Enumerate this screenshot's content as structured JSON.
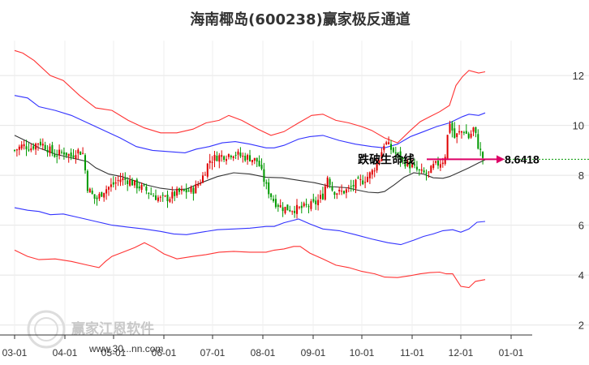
{
  "chart_data": {
    "type": "line",
    "title": "海南椰岛(600238)赢家极反通道",
    "y_ticks": [
      2,
      4,
      6,
      8,
      10,
      12
    ],
    "ylim": [
      1.6,
      13.4
    ],
    "x_ticks": [
      "03-01",
      "04-01",
      "05-01",
      "06-01",
      "07-01",
      "08-01",
      "09-01",
      "10-01",
      "11-01",
      "12-01",
      "01-01"
    ],
    "grid": true,
    "annotation": "跌破生命线",
    "current_value_label": "8.6418",
    "current_value": 8.6418,
    "watermark": "赢家江恩软件",
    "watermark_url": "www.30...nn.com",
    "colors": {
      "up": "#e00000",
      "down": "#009900",
      "outer_band": "#ff3333",
      "inner_band": "#3333ff",
      "midline": "#333333",
      "arrow": "#dd0066",
      "level_line": "#009900"
    },
    "series": [
      {
        "role": "outer-upper",
        "values": [
          [
            0,
            13.0
          ],
          [
            5,
            12.9
          ],
          [
            12,
            12.6
          ],
          [
            22,
            12.0
          ],
          [
            30,
            11.8
          ],
          [
            40,
            11.2
          ],
          [
            50,
            10.7
          ],
          [
            60,
            10.6
          ],
          [
            70,
            10.2
          ],
          [
            80,
            9.9
          ],
          [
            90,
            9.7
          ],
          [
            100,
            9.7
          ],
          [
            110,
            9.85
          ],
          [
            118,
            10.1
          ],
          [
            126,
            10.2
          ],
          [
            132,
            10.4
          ],
          [
            140,
            10.2
          ],
          [
            150,
            9.85
          ],
          [
            158,
            9.6
          ],
          [
            166,
            9.75
          ],
          [
            175,
            10.1
          ],
          [
            183,
            10.4
          ],
          [
            190,
            10.45
          ],
          [
            198,
            10.2
          ],
          [
            206,
            10.1
          ],
          [
            214,
            9.95
          ],
          [
            220,
            9.8
          ],
          [
            228,
            9.5
          ],
          [
            236,
            9.3
          ],
          [
            244,
            9.8
          ],
          [
            250,
            10.15
          ],
          [
            256,
            10.35
          ],
          [
            262,
            10.55
          ],
          [
            268,
            10.8
          ],
          [
            272,
            11.6
          ],
          [
            276,
            11.95
          ],
          [
            280,
            12.2
          ],
          [
            286,
            12.1
          ],
          [
            290,
            12.15
          ]
        ]
      },
      {
        "role": "inner-upper",
        "values": [
          [
            0,
            11.2
          ],
          [
            8,
            11.1
          ],
          [
            15,
            10.75
          ],
          [
            25,
            10.6
          ],
          [
            35,
            10.4
          ],
          [
            45,
            10.1
          ],
          [
            55,
            9.8
          ],
          [
            65,
            9.5
          ],
          [
            75,
            9.15
          ],
          [
            85,
            9.0
          ],
          [
            95,
            8.95
          ],
          [
            105,
            8.9
          ],
          [
            112,
            9.05
          ],
          [
            120,
            9.15
          ],
          [
            128,
            9.3
          ],
          [
            136,
            9.35
          ],
          [
            145,
            9.25
          ],
          [
            155,
            9.1
          ],
          [
            160,
            9.1
          ],
          [
            166,
            9.2
          ],
          [
            175,
            9.45
          ],
          [
            182,
            9.55
          ],
          [
            190,
            9.6
          ],
          [
            200,
            9.4
          ],
          [
            210,
            9.25
          ],
          [
            220,
            9.15
          ],
          [
            228,
            9.1
          ],
          [
            236,
            9.25
          ],
          [
            244,
            9.55
          ],
          [
            252,
            9.75
          ],
          [
            260,
            9.95
          ],
          [
            268,
            10.1
          ],
          [
            276,
            10.35
          ],
          [
            280,
            10.45
          ],
          [
            286,
            10.4
          ],
          [
            290,
            10.5
          ]
        ]
      },
      {
        "role": "midline",
        "values": [
          [
            0,
            9.6
          ],
          [
            8,
            9.35
          ],
          [
            15,
            9.1
          ],
          [
            25,
            8.85
          ],
          [
            35,
            8.7
          ],
          [
            45,
            8.55
          ],
          [
            50,
            8.3
          ],
          [
            58,
            8.05
          ],
          [
            66,
            7.95
          ],
          [
            74,
            7.78
          ],
          [
            82,
            7.6
          ],
          [
            90,
            7.48
          ],
          [
            98,
            7.42
          ],
          [
            106,
            7.45
          ],
          [
            115,
            7.7
          ],
          [
            125,
            7.95
          ],
          [
            135,
            8.1
          ],
          [
            145,
            8.05
          ],
          [
            155,
            7.92
          ],
          [
            165,
            7.9
          ],
          [
            175,
            7.8
          ],
          [
            185,
            7.7
          ],
          [
            195,
            7.55
          ],
          [
            205,
            7.5
          ],
          [
            212,
            7.4
          ],
          [
            218,
            7.32
          ],
          [
            224,
            7.3
          ],
          [
            228,
            7.35
          ],
          [
            234,
            7.62
          ],
          [
            240,
            7.92
          ],
          [
            246,
            8.1
          ],
          [
            252,
            8.05
          ],
          [
            258,
            7.9
          ],
          [
            264,
            7.88
          ],
          [
            268,
            7.95
          ],
          [
            274,
            8.12
          ],
          [
            280,
            8.3
          ],
          [
            286,
            8.5
          ],
          [
            290,
            8.62
          ]
        ]
      },
      {
        "role": "inner-lower",
        "values": [
          [
            0,
            6.7
          ],
          [
            8,
            6.6
          ],
          [
            15,
            6.55
          ],
          [
            22,
            6.42
          ],
          [
            30,
            6.45
          ],
          [
            40,
            6.3
          ],
          [
            50,
            6.15
          ],
          [
            60,
            6.0
          ],
          [
            70,
            5.92
          ],
          [
            80,
            5.85
          ],
          [
            90,
            5.75
          ],
          [
            98,
            5.65
          ],
          [
            106,
            5.62
          ],
          [
            115,
            5.72
          ],
          [
            125,
            5.82
          ],
          [
            135,
            5.85
          ],
          [
            145,
            5.88
          ],
          [
            155,
            5.95
          ],
          [
            160,
            5.95
          ],
          [
            166,
            6.1
          ],
          [
            175,
            6.25
          ],
          [
            182,
            6.05
          ],
          [
            190,
            5.85
          ],
          [
            200,
            5.78
          ],
          [
            210,
            5.62
          ],
          [
            220,
            5.45
          ],
          [
            230,
            5.3
          ],
          [
            238,
            5.22
          ],
          [
            246,
            5.4
          ],
          [
            252,
            5.55
          ],
          [
            258,
            5.65
          ],
          [
            264,
            5.78
          ],
          [
            270,
            5.82
          ],
          [
            275,
            5.72
          ],
          [
            280,
            5.85
          ],
          [
            285,
            6.12
          ],
          [
            290,
            6.15
          ]
        ]
      },
      {
        "role": "outer-lower",
        "values": [
          [
            0,
            5.0
          ],
          [
            8,
            4.75
          ],
          [
            15,
            4.62
          ],
          [
            25,
            4.65
          ],
          [
            35,
            4.55
          ],
          [
            45,
            4.4
          ],
          [
            52,
            4.3
          ],
          [
            56,
            4.55
          ],
          [
            60,
            4.75
          ],
          [
            66,
            4.9
          ],
          [
            74,
            5.1
          ],
          [
            80,
            5.3
          ],
          [
            86,
            5.1
          ],
          [
            92,
            4.85
          ],
          [
            100,
            4.65
          ],
          [
            110,
            4.75
          ],
          [
            118,
            4.82
          ],
          [
            126,
            4.92
          ],
          [
            135,
            4.95
          ],
          [
            145,
            4.92
          ],
          [
            155,
            4.92
          ],
          [
            160,
            5.0
          ],
          [
            166,
            5.05
          ],
          [
            172,
            5.15
          ],
          [
            176,
            5.15
          ],
          [
            182,
            4.88
          ],
          [
            190,
            4.65
          ],
          [
            198,
            4.4
          ],
          [
            206,
            4.3
          ],
          [
            214,
            4.15
          ],
          [
            222,
            4.05
          ],
          [
            228,
            3.92
          ],
          [
            236,
            3.9
          ],
          [
            244,
            3.98
          ],
          [
            250,
            4.05
          ],
          [
            256,
            4.1
          ],
          [
            262,
            4.12
          ],
          [
            266,
            4.05
          ],
          [
            270,
            4.05
          ],
          [
            275,
            3.55
          ],
          [
            280,
            3.5
          ],
          [
            284,
            3.75
          ],
          [
            290,
            3.82
          ]
        ]
      },
      {
        "role": "price",
        "values": [
          [
            0,
            9.0
          ],
          [
            5,
            9.2
          ],
          [
            10,
            9.1
          ],
          [
            15,
            9.35
          ],
          [
            20,
            9.1
          ],
          [
            25,
            8.8
          ],
          [
            30,
            8.95
          ],
          [
            35,
            8.75
          ],
          [
            38,
            9.0
          ],
          [
            42,
            8.9
          ],
          [
            45,
            7.5
          ],
          [
            50,
            7.0
          ],
          [
            55,
            7.4
          ],
          [
            60,
            7.6
          ],
          [
            65,
            7.85
          ],
          [
            70,
            7.8
          ],
          [
            75,
            7.6
          ],
          [
            80,
            7.45
          ],
          [
            85,
            7.2
          ],
          [
            90,
            7.05
          ],
          [
            95,
            7.1
          ],
          [
            100,
            7.3
          ],
          [
            105,
            7.35
          ],
          [
            110,
            7.4
          ],
          [
            115,
            7.8
          ],
          [
            120,
            8.6
          ],
          [
            125,
            8.75
          ],
          [
            130,
            8.8
          ],
          [
            135,
            8.9
          ],
          [
            140,
            8.75
          ],
          [
            145,
            8.7
          ],
          [
            150,
            8.55
          ],
          [
            155,
            7.55
          ],
          [
            160,
            6.95
          ],
          [
            165,
            6.7
          ],
          [
            170,
            6.65
          ],
          [
            175,
            6.65
          ],
          [
            180,
            6.75
          ],
          [
            185,
            6.85
          ],
          [
            190,
            7.2
          ],
          [
            193,
            8.0
          ],
          [
            196,
            7.4
          ],
          [
            200,
            7.3
          ],
          [
            205,
            7.4
          ],
          [
            210,
            7.65
          ],
          [
            215,
            7.8
          ],
          [
            220,
            8.1
          ],
          [
            225,
            8.7
          ],
          [
            228,
            9.35
          ],
          [
            232,
            9.05
          ],
          [
            236,
            8.8
          ],
          [
            240,
            8.55
          ],
          [
            245,
            8.35
          ],
          [
            250,
            8.1
          ],
          [
            255,
            8.05
          ],
          [
            258,
            8.35
          ],
          [
            262,
            8.5
          ],
          [
            265,
            8.65
          ],
          [
            268,
            10.2
          ],
          [
            271,
            9.5
          ],
          [
            274,
            9.7
          ],
          [
            277,
            9.8
          ],
          [
            280,
            9.5
          ],
          [
            283,
            9.9
          ],
          [
            286,
            9.1
          ],
          [
            289,
            8.65
          ]
        ]
      }
    ]
  }
}
